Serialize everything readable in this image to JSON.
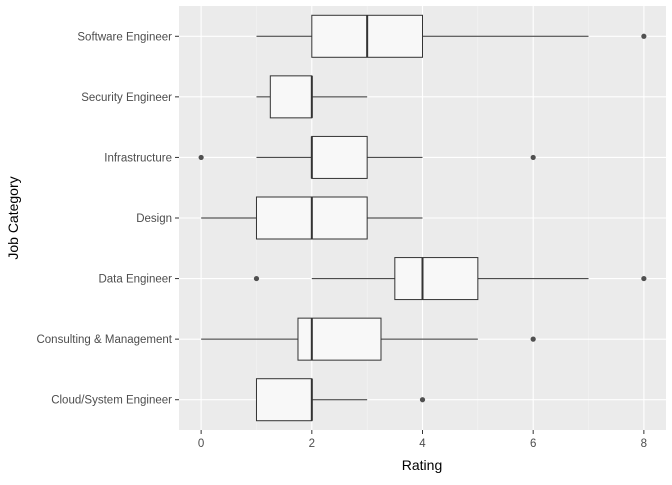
{
  "chart_data": {
    "type": "boxplot",
    "orientation": "horizontal",
    "title": "",
    "xlabel": "Rating",
    "ylabel": "Job Category",
    "xlim": [
      -0.4,
      8.4
    ],
    "x_ticks": [
      0,
      2,
      4,
      6,
      8
    ],
    "x_tick_labels": [
      "0",
      "2",
      "4",
      "6",
      "8"
    ],
    "grid": true,
    "colors": {
      "panel_background": "#ebebeb",
      "grid_major": "#ffffff",
      "grid_minor": "#f5f5f5",
      "box_fill": "#f8f8f8",
      "box_stroke": "#333333",
      "outlier": "#333333",
      "axis_text": "#4d4d4d",
      "axis_title": "#000000"
    },
    "categories": [
      "Cloud/System Engineer",
      "Consulting & Management",
      "Data Engineer",
      "Design",
      "Infrastructure",
      "Security Engineer",
      "Software Engineer"
    ],
    "boxes": [
      {
        "category": "Cloud/System Engineer",
        "min": 1,
        "q1": 1,
        "median": 2,
        "q3": 2,
        "max": 3,
        "outliers": [
          4
        ]
      },
      {
        "category": "Consulting & Management",
        "min": 0,
        "q1": 1.75,
        "median": 2,
        "q3": 3.25,
        "max": 5,
        "outliers": [
          6
        ]
      },
      {
        "category": "Data Engineer",
        "min": 2,
        "q1": 3.5,
        "median": 4,
        "q3": 5,
        "max": 7,
        "outliers": [
          1,
          8
        ]
      },
      {
        "category": "Design",
        "min": 0,
        "q1": 1,
        "median": 2,
        "q3": 3,
        "max": 4,
        "outliers": []
      },
      {
        "category": "Infrastructure",
        "min": 1,
        "q1": 2,
        "median": 2,
        "q3": 3,
        "max": 4,
        "outliers": [
          0,
          6
        ]
      },
      {
        "category": "Security Engineer",
        "min": 1,
        "q1": 1.25,
        "median": 2,
        "q3": 2,
        "max": 3,
        "outliers": []
      },
      {
        "category": "Software Engineer",
        "min": 1,
        "q1": 2,
        "median": 3,
        "q3": 4,
        "max": 7,
        "outliers": [
          8
        ]
      }
    ]
  }
}
